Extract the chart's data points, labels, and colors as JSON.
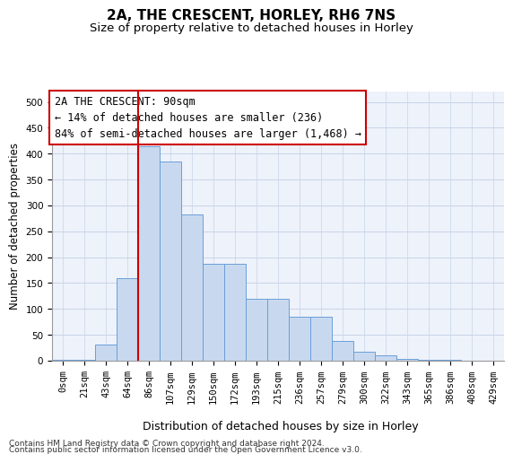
{
  "title": "2A, THE CRESCENT, HORLEY, RH6 7NS",
  "subtitle": "Size of property relative to detached houses in Horley",
  "xlabel": "Distribution of detached houses by size in Horley",
  "ylabel": "Number of detached properties",
  "bar_color": "#c8d9ef",
  "bar_edge_color": "#6a9fd8",
  "grid_color": "#c8d4e8",
  "background_color": "#eef2fa",
  "annotation_box_color": "#cc0000",
  "vline_color": "#cc0000",
  "bin_labels": [
    "0sqm",
    "21sqm",
    "43sqm",
    "64sqm",
    "86sqm",
    "107sqm",
    "129sqm",
    "150sqm",
    "172sqm",
    "193sqm",
    "215sqm",
    "236sqm",
    "257sqm",
    "279sqm",
    "300sqm",
    "322sqm",
    "343sqm",
    "365sqm",
    "386sqm",
    "408sqm",
    "429sqm"
  ],
  "bar_heights": [
    2,
    2,
    32,
    160,
    415,
    385,
    283,
    188,
    188,
    120,
    120,
    85,
    85,
    38,
    18,
    10,
    3,
    2,
    1,
    0,
    0
  ],
  "annotation_text": "2A THE CRESCENT: 90sqm\n← 14% of detached houses are smaller (236)\n84% of semi-detached houses are larger (1,468) →",
  "ylim": [
    0,
    520
  ],
  "yticks": [
    0,
    50,
    100,
    150,
    200,
    250,
    300,
    350,
    400,
    450,
    500
  ],
  "footnote1": "Contains HM Land Registry data © Crown copyright and database right 2024.",
  "footnote2": "Contains public sector information licensed under the Open Government Licence v3.0.",
  "title_fontsize": 11,
  "subtitle_fontsize": 9.5,
  "xlabel_fontsize": 9,
  "ylabel_fontsize": 8.5,
  "tick_fontsize": 7.5,
  "annotation_fontsize": 8.5,
  "footnote_fontsize": 6.5
}
